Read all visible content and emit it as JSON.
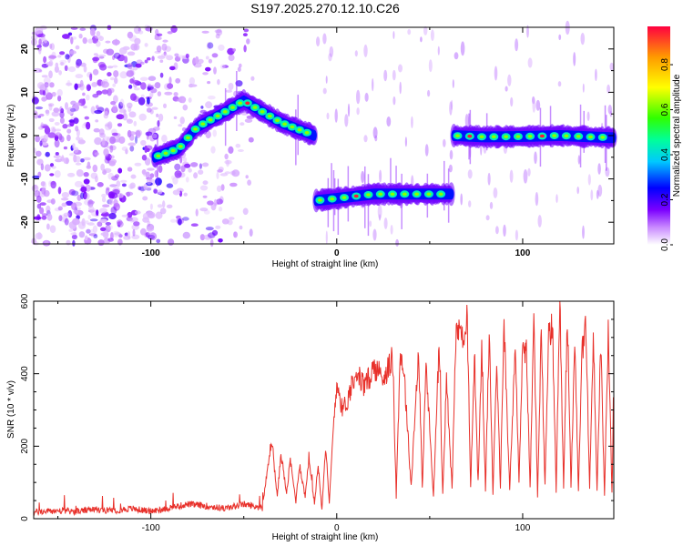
{
  "title": "S197.2025.270.12.10.C26",
  "chart_data": [
    {
      "type": "heatmap",
      "xlabel": "Height of straight line (km)",
      "ylabel": "Frequency (Hz)",
      "xlim": [
        -163,
        149
      ],
      "ylim": [
        -25,
        25
      ],
      "x_ticks": [
        "-100",
        "0",
        "100"
      ],
      "y_ticks": [
        "20",
        "10",
        "0",
        "-10",
        "-20"
      ],
      "colorbar": {
        "label": "Normalized spectral amplitude",
        "range": [
          0,
          0.97
        ],
        "ticks": [
          "0.0",
          "0.2",
          "0.4",
          "0.6",
          "0.8"
        ]
      },
      "tracks": [
        {
          "segment": "noise",
          "x_range": [
            -163,
            -45
          ],
          "freq_range": [
            -25,
            25
          ]
        },
        {
          "segment": "rising",
          "x": [
            -98,
            -85,
            -75,
            -62,
            -50,
            -42,
            -30,
            -18,
            -12
          ],
          "freq": [
            -5,
            -3,
            2,
            5,
            8,
            6,
            3,
            1,
            0
          ]
        },
        {
          "segment": "low",
          "x": [
            -11,
            0,
            20,
            40,
            62
          ],
          "freq": [
            -15,
            -14.5,
            -13.5,
            -13.5,
            -13.5
          ]
        },
        {
          "segment": "high",
          "x": [
            63,
            80,
            100,
            120,
            149
          ],
          "freq": [
            0,
            -0.3,
            -0.2,
            0,
            -0.5
          ]
        }
      ]
    },
    {
      "type": "line",
      "xlabel": "Height of straight line (km)",
      "ylabel": "SNR (10 * v/v)",
      "xlim": [
        -163,
        149
      ],
      "ylim": [
        0,
        600
      ],
      "x_ticks": [
        "-100",
        "0",
        "100"
      ],
      "y_ticks": [
        "600",
        "400",
        "200",
        "0"
      ],
      "series": [
        {
          "name": "SNR",
          "color": "#e8302a",
          "x": [
            -163,
            -150,
            -140,
            -130,
            -120,
            -110,
            -100,
            -90,
            -80,
            -70,
            -60,
            -50,
            -40,
            -35,
            -32,
            -30,
            -27,
            -25,
            -22,
            -20,
            -17,
            -15,
            -12,
            -10,
            -8,
            -6,
            -4,
            -2,
            0,
            3,
            6,
            10,
            15,
            20,
            25,
            30,
            32,
            34,
            36,
            40,
            44,
            46,
            48,
            52,
            55,
            57,
            59,
            62,
            64,
            66,
            68,
            70,
            72,
            74,
            76,
            78,
            80,
            82,
            84,
            86,
            88,
            90,
            93,
            96,
            98,
            100,
            102,
            104,
            106,
            108,
            110,
            112,
            114,
            116,
            118,
            120,
            122,
            124,
            126,
            128,
            130,
            132,
            134,
            136,
            138,
            140,
            142,
            144,
            146,
            148,
            149
          ],
          "values": [
            18,
            22,
            20,
            25,
            22,
            28,
            20,
            30,
            40,
            35,
            28,
            40,
            30,
            220,
            60,
            180,
            70,
            160,
            50,
            150,
            60,
            170,
            40,
            150,
            30,
            200,
            40,
            240,
            380,
            300,
            330,
            410,
            360,
            420,
            390,
            440,
            60,
            450,
            420,
            90,
            470,
            80,
            430,
            60,
            480,
            70,
            380,
            80,
            500,
            520,
            480,
            580,
            90,
            440,
            100,
            470,
            80,
            510,
            70,
            450,
            90,
            530,
            80,
            470,
            100,
            480,
            460,
            80,
            560,
            60,
            520,
            90,
            500,
            540,
            70,
            600,
            80,
            560,
            90,
            510,
            70,
            470,
            520,
            90,
            500,
            80,
            490,
            60,
            530,
            70,
            340
          ]
        }
      ]
    }
  ]
}
